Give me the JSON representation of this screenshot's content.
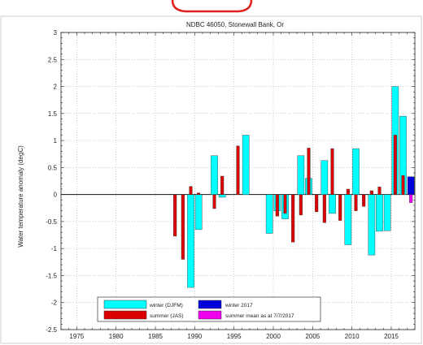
{
  "chart_data": {
    "type": "bar",
    "title": "NDBC 46050, Stonewall Bank, Or",
    "xlabel": "",
    "ylabel": "Water temperature anomaly (degC)",
    "xlim": [
      1973,
      2018
    ],
    "ylim": [
      -2.5,
      3
    ],
    "xticks": [
      1975,
      1980,
      1985,
      1990,
      1995,
      2000,
      2005,
      2010,
      2015
    ],
    "yticks": [
      -2.5,
      -2,
      -1.5,
      -1,
      -0.5,
      0,
      0.5,
      1,
      1.5,
      2,
      2.5,
      3
    ],
    "grid": true,
    "legend_position": "bottom-left",
    "series": [
      {
        "name": "winter (DJFM)",
        "color": "#00ffff",
        "x": [
          1989,
          1990,
          1992,
          1993,
          1996,
          1999,
          2000,
          2001,
          2003,
          2004,
          2006,
          2007,
          2009,
          2010,
          2012,
          2013,
          2014,
          2015,
          2016
        ],
        "values": [
          -1.72,
          -0.65,
          0.72,
          -0.05,
          1.1,
          -0.72,
          -0.3,
          -0.45,
          0.72,
          0.3,
          0.63,
          -0.35,
          -0.93,
          0.85,
          -1.12,
          -0.68,
          -0.67,
          2.0,
          1.45
        ]
      },
      {
        "name": "summer (JAS)",
        "color": "#dd0000",
        "x": [
          1987,
          1988,
          1989,
          1990,
          1992,
          1993,
          1995,
          2000,
          2001,
          2002,
          2003,
          2004,
          2005,
          2006,
          2007,
          2008,
          2009,
          2010,
          2011,
          2012,
          2013,
          2015,
          2016
        ],
        "values": [
          -0.77,
          -1.2,
          0.15,
          0.03,
          -0.26,
          0.34,
          0.9,
          -0.4,
          -0.35,
          -0.88,
          -0.38,
          0.86,
          -0.32,
          -0.52,
          0.85,
          -0.48,
          0.1,
          -0.3,
          -0.22,
          0.07,
          0.14,
          1.1,
          0.35
        ]
      },
      {
        "name": "winter 2017",
        "color": "#0000dd",
        "x": [
          2017
        ],
        "values": [
          0.33
        ]
      },
      {
        "name": "summer mean as at 7/7/2017",
        "color": "#ee00ee",
        "x": [
          2017
        ],
        "values": [
          -0.15
        ]
      }
    ]
  }
}
